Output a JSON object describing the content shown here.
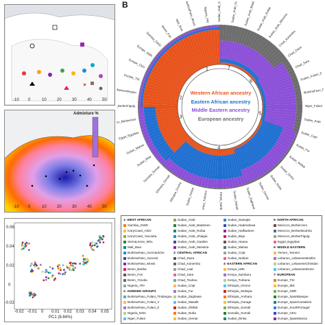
{
  "panel_b_label": "B",
  "map1": {
    "x_ticks": [
      "-10",
      "0",
      "10",
      "20",
      "30",
      "40",
      "50"
    ]
  },
  "map2": {
    "x_ticks": [
      "-10",
      "0",
      "10",
      "20",
      "30",
      "40",
      "50"
    ],
    "legend_title": "Admixture %"
  },
  "pca": {
    "x_ticks": [
      "-0.02",
      "-0.01",
      "0",
      "0.01",
      "0.02",
      "0.03",
      "0.04",
      "0.05"
    ],
    "y_ticks": [
      "0.06",
      "0.04",
      "0.02",
      "0",
      "-0.02"
    ],
    "x_label": "PC1 (8.84%)"
  },
  "circle": {
    "center_labels": [
      {
        "text": "Western African ancestry",
        "color": "#e8531b"
      },
      {
        "text": "Eastern African ancestry",
        "color": "#1f6fd1"
      },
      {
        "text": "Middle Eastern ancestry",
        "color": "#8b4fd8"
      },
      {
        "text": "European ancestry",
        "color": "#6d6d6d"
      }
    ],
    "ring_numbers": [
      "1",
      "2",
      "3",
      "4",
      "5",
      "6",
      "7"
    ],
    "colors": {
      "west": "#e8531b",
      "east": "#1f6fd1",
      "middle": "#8b4fd8",
      "europe": "#6d6d6d"
    }
  },
  "legend": {
    "columns": [
      [
        "1- WEST AFRICAN",
        "Gambia_GWD",
        "IvoryCoast_Ahizi",
        "IvoryCoast_Yacouba",
        "SierraLeone_MSL",
        "Mali_Bwa",
        "BurkinaFaso_Gurmantche",
        "BurkinaFaso_Gurunsi",
        "BurkinaFaso_Mossi",
        "Benin_Bariba",
        "Benin_Fon",
        "Benin_Yoruba",
        "Nigeria_YRI",
        "2- ADMIXED GROUPS",
        "BurkinaFaso_Fulani_Tindangou",
        "BurkinaFaso_Fulani_V",
        "BurkinaFaso_Fulani_Z",
        "Nigeria_ESN",
        "Niger_Fulani"
      ],
      [
        "Sudan_Arab",
        "Sudan_Arab_Bataheen",
        "Sudan_Arab_Rufaa",
        "Sudan_Arab_Shaigia",
        "Sudan_Arab_Gaalien",
        "Sudan_Arab_Messiria",
        "3- CENTRAL AFRICAN",
        "Chad_Daza",
        "Chad_Kanembu",
        "Chad_Laal",
        "Chad_Sara",
        "Chad_Toubou",
        "Sudan_Copt",
        "Sudan_Fur",
        "Sudan_Zaghawa",
        "Sudan_Masalit",
        "Sudan_Shilluk",
        "Sudan_Nuba",
        "Sudan_Gemar"
      ],
      [
        "Sudan_Daeegla",
        "Sudan_Hadendowa",
        "Sudan_Halfawieen",
        "Sudan_Beja",
        "Sudan_Hausa",
        "Sudan_Mahas",
        "Sudan_Copt",
        "Sudan_Nubian",
        "4- EASTERN AFRICAN",
        "Kenya_LWK",
        "Kenya_Samburu",
        "Kenya_Turkana",
        "Ethiopia_Oromo",
        "Ethiopia_Wolayta",
        "Ethiopia_Amhara",
        "Ethiopia_Gurage",
        "Ethiopia_Somali",
        "Somalia_Somali",
        "Sudan_Dinka"
      ],
      [
        "5- NORTH AFRICAN",
        "Morocco_BerberAsni",
        "Morocco_BerberBouhria",
        "Morocco_BerberFiguig",
        "Egypt_Egyptian",
        "6- MIDDLE EASTERN",
        "Yemen_Yemeni",
        "Lebanon_LebaneseMuslim",
        "Lebanon_LebaneseChristian",
        "Lebanon_LebaneseDruze",
        "7- EUROPEAN",
        "Europe_TSI",
        "Europe_IBS",
        "Europe_GBR",
        "Europe_SpainBasque",
        "Europe_SpainCantabria",
        "Europe_SouthPortugal",
        "Europe_CEU",
        "Europe_SpainMurcia"
      ]
    ],
    "colors": [
      "#c62828",
      "#f57c00",
      "#fbc02d",
      "#7cb342",
      "#2e7d32",
      "#00897b",
      "#1e88e5",
      "#3949ab",
      "#8e24aa",
      "#d81b60",
      "#6d4c41",
      "#546e7a",
      "#9e9e9e",
      "#f06292",
      "#4db6ac",
      "#ffb74d",
      "#9575cd",
      "#aed581",
      "#4fc3f7"
    ]
  },
  "outer_labels": [
    "Sudan_Arab_Shaigia",
    "Sudan_Arab_Gaalien",
    "Sudan_Arab_Bataheen",
    "Sudan_Arab_Rufaa",
    "Sudan_Arab_Messiria",
    "Chad_Kanembu",
    "Chad_Daza",
    "Chad_Sara",
    "Sudan_Fulani_Z",
    "BurkinaFaso_Fulani_V",
    "Niger_Fulani",
    "Sudan_Arab",
    "Sudan_Copt",
    "Sudan_Fur",
    "Sudan_Shilluk",
    "Sudan_Dinka",
    "Sudan_Nuba",
    "Sudan_Gemar",
    "Sudan_Zaghawa",
    "Sudan_Masalit",
    "Kenya_Samburu",
    "Kenya_Turkana",
    "Sudan_Hausa",
    "Ethiopia_Oromo",
    "Ethiopia_Somali",
    "Somalia_Somali",
    "Sudan_Beja",
    "Sudan_Mahas",
    "Egypt_Egyptian",
    "Morocco_BerberAsni",
    "Morocco_BerberFiguig",
    "Lebanon_LebaneseMuslim",
    "Europe_TSI",
    "Europe_CEU",
    "Europe_GBR",
    "Gambia_GWD",
    "Benin_Fon",
    "Mali_Bwa",
    "BurkinaFaso_Mossi",
    "Nigeria_YRI"
  ]
}
